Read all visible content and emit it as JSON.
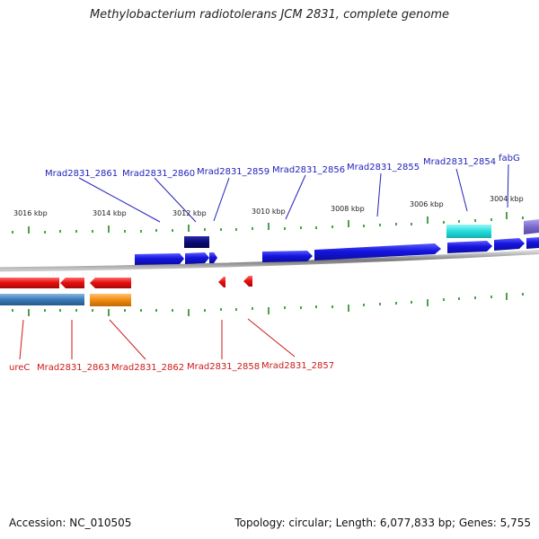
{
  "title": "Methylobacterium radiotolerans JCM 2831, complete genome",
  "footer": {
    "accession": "Accession: NC_010505",
    "summary": "Topology: circular; Length: 6,077,833 bp; Genes: 5,755"
  },
  "scale_labels": [
    "3016 kbp",
    "3014 kbp",
    "3012 kbp",
    "3010 kbp",
    "3008 kbp",
    "3006 kbp",
    "3004 kbp"
  ],
  "gene_labels_top": [
    "Mrad2831_2861",
    "Mrad2831_2860",
    "Mrad2831_2859",
    "Mrad2831_2856",
    "Mrad2831_2855",
    "Mrad2831_2854",
    "fabG"
  ],
  "gene_labels_bottom": [
    "ureC",
    "Mrad2831_2863",
    "Mrad2831_2862",
    "Mrad2831_2858",
    "Mrad2831_2857"
  ],
  "colors": {
    "forward_gene": "#1515e0",
    "reverse_gene": "#e81010",
    "top_label": "#2222bb",
    "bottom_label": "#cc1a1a",
    "backbone": "#8a8a8a",
    "tick": "#1c8c1c",
    "dark_block": "#0b0b78",
    "cyan_block": "#22dddd",
    "purple_block": "#7a6acc",
    "steelblue_block": "#3a7ab8",
    "orange_block": "#f08a10"
  }
}
